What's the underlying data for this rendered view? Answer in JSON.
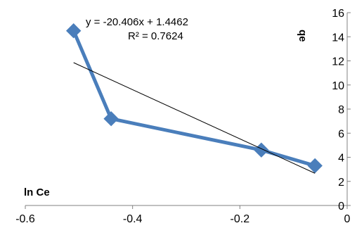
{
  "chart_data": {
    "type": "line",
    "xlabel": "ln Ce",
    "ylabel": "qe",
    "xlim": [
      -0.6,
      0
    ],
    "ylim": [
      0,
      16
    ],
    "x_ticks": [
      "-0.6",
      "-0.4",
      "-0.2",
      "0"
    ],
    "y_ticks": [
      "0",
      "2",
      "4",
      "6",
      "8",
      "10",
      "12",
      "14",
      "16"
    ],
    "series": [
      {
        "points": [
          {
            "x": -0.51,
            "y": 14.5
          },
          {
            "x": -0.44,
            "y": 7.2
          },
          {
            "x": -0.16,
            "y": 4.6
          },
          {
            "x": -0.06,
            "y": 3.3
          }
        ],
        "color": "#4a7ebb",
        "marker": "diamond"
      }
    ],
    "trendline": {
      "slope": -20.406,
      "intercept": 1.4462,
      "x_range": [
        -0.51,
        -0.06
      ],
      "color": "#000000",
      "equation": "y = -20.406x + 1.4462",
      "r_squared": "R² = 0.7624"
    },
    "grid": false,
    "legend": "none"
  }
}
